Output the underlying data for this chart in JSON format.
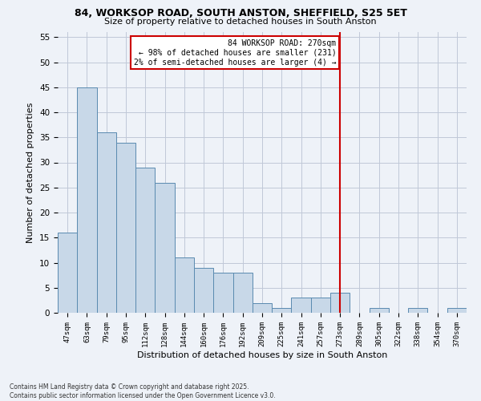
{
  "title_line1": "84, WORKSOP ROAD, SOUTH ANSTON, SHEFFIELD, S25 5ET",
  "title_line2": "Size of property relative to detached houses in South Anston",
  "xlabel": "Distribution of detached houses by size in South Anston",
  "ylabel": "Number of detached properties",
  "categories": [
    "47sqm",
    "63sqm",
    "79sqm",
    "95sqm",
    "112sqm",
    "128sqm",
    "144sqm",
    "160sqm",
    "176sqm",
    "192sqm",
    "209sqm",
    "225sqm",
    "241sqm",
    "257sqm",
    "273sqm",
    "289sqm",
    "305sqm",
    "322sqm",
    "338sqm",
    "354sqm",
    "370sqm"
  ],
  "values": [
    16,
    45,
    36,
    34,
    29,
    26,
    11,
    9,
    8,
    8,
    2,
    1,
    3,
    3,
    4,
    0,
    1,
    0,
    1,
    0,
    1
  ],
  "bar_color": "#c8d8e8",
  "bar_edge_color": "#5a8ab0",
  "grid_color": "#c0c8d8",
  "background_color": "#eef2f8",
  "annotation_text": "84 WORKSOP ROAD: 270sqm\n← 98% of detached houses are smaller (231)\n2% of semi-detached houses are larger (4) →",
  "annotation_box_color": "#ffffff",
  "annotation_box_edge": "#cc0000",
  "vline_x_index": 14,
  "vline_color": "#cc0000",
  "ylim": [
    0,
    56
  ],
  "yticks": [
    0,
    5,
    10,
    15,
    20,
    25,
    30,
    35,
    40,
    45,
    50,
    55
  ],
  "footnote": "Contains HM Land Registry data © Crown copyright and database right 2025.\nContains public sector information licensed under the Open Government Licence v3.0."
}
